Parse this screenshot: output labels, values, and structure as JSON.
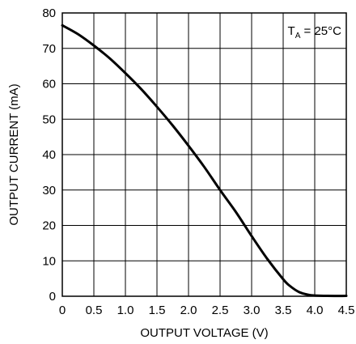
{
  "chart_data": {
    "type": "line",
    "xlabel": "OUTPUT VOLTAGE (V)",
    "ylabel": "OUTPUT CURRENT (mA)",
    "xlim": [
      0,
      4.5
    ],
    "ylim": [
      0,
      80
    ],
    "x_ticks": [
      0,
      0.5,
      1.0,
      1.5,
      2.0,
      2.5,
      3.0,
      3.5,
      4.0,
      4.5
    ],
    "x_tick_labels": [
      "0",
      "0.5",
      "1.0",
      "1.5",
      "2.0",
      "2.5",
      "3.0",
      "3.5",
      "4.0",
      "4.5"
    ],
    "y_ticks": [
      0,
      10,
      20,
      30,
      40,
      50,
      60,
      70,
      80
    ],
    "y_tick_labels": [
      "0",
      "10",
      "20",
      "30",
      "40",
      "50",
      "60",
      "70",
      "80"
    ],
    "grid": true,
    "annotation": {
      "main": "T",
      "sub": "A",
      "rest": " = 25°C"
    },
    "series": [
      {
        "x": [
          0,
          0.25,
          0.5,
          0.75,
          1.0,
          1.25,
          1.5,
          1.75,
          2.0,
          2.25,
          2.5,
          2.75,
          3.0,
          3.25,
          3.5,
          3.6,
          3.75,
          3.9,
          4.0,
          4.2,
          4.5
        ],
        "y": [
          76.5,
          74.0,
          70.8,
          67.2,
          63.0,
          58.5,
          53.5,
          48.2,
          42.5,
          36.5,
          30.0,
          23.8,
          17.0,
          10.5,
          4.8,
          3.0,
          1.2,
          0.4,
          0.2,
          0.1,
          0.1
        ]
      }
    ]
  }
}
